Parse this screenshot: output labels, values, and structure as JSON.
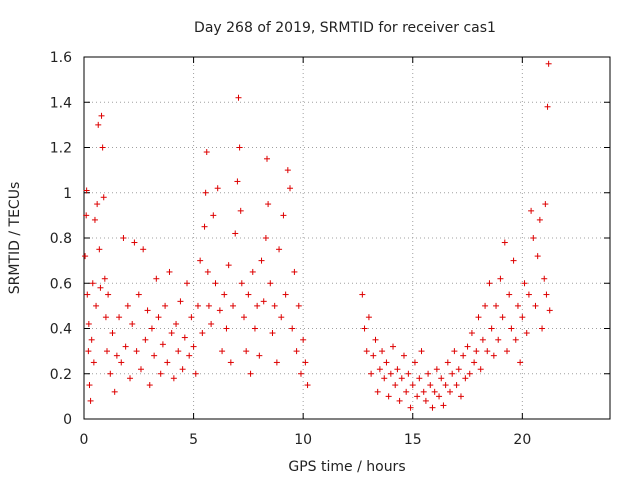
{
  "chart_data": {
    "type": "scatter",
    "title": "Day 268 of 2019, SRMTID for receiver cas1",
    "xlabel": "GPS time / hours",
    "ylabel": "SRMTID / TECUs",
    "xlim": [
      0,
      24
    ],
    "ylim": [
      0,
      1.6
    ],
    "xticks": [
      0,
      5,
      10,
      15,
      20
    ],
    "xtick_labels": [
      "0",
      "5",
      "10",
      "15",
      "20"
    ],
    "yticks": [
      0,
      0.2,
      0.4,
      0.6,
      0.8,
      1,
      1.2,
      1.4,
      1.6
    ],
    "ytick_labels": [
      "0",
      "0.2",
      "0.4",
      "0.6",
      "0.8",
      "1",
      "1.2",
      "1.4",
      "1.6"
    ],
    "grid": true,
    "marker": "+",
    "series": [
      {
        "name": "SRMTID",
        "color": "#dd0000",
        "points": [
          [
            0.05,
            0.72
          ],
          [
            0.1,
            0.9
          ],
          [
            0.12,
            1.01
          ],
          [
            0.15,
            0.55
          ],
          [
            0.2,
            0.3
          ],
          [
            0.22,
            0.42
          ],
          [
            0.25,
            0.15
          ],
          [
            0.3,
            0.08
          ],
          [
            0.35,
            0.35
          ],
          [
            0.4,
            0.6
          ],
          [
            0.45,
            0.25
          ],
          [
            0.5,
            0.88
          ],
          [
            0.55,
            0.5
          ],
          [
            0.6,
            0.95
          ],
          [
            0.65,
            1.3
          ],
          [
            0.7,
            0.75
          ],
          [
            0.75,
            0.58
          ],
          [
            0.8,
            1.34
          ],
          [
            0.85,
            1.2
          ],
          [
            0.9,
            0.98
          ],
          [
            0.95,
            0.62
          ],
          [
            1.0,
            0.45
          ],
          [
            1.05,
            0.3
          ],
          [
            1.1,
            0.55
          ],
          [
            1.2,
            0.2
          ],
          [
            1.3,
            0.38
          ],
          [
            1.4,
            0.12
          ],
          [
            1.5,
            0.28
          ],
          [
            1.6,
            0.45
          ],
          [
            1.7,
            0.25
          ],
          [
            1.8,
            0.8
          ],
          [
            1.9,
            0.32
          ],
          [
            2.0,
            0.5
          ],
          [
            2.1,
            0.18
          ],
          [
            2.2,
            0.42
          ],
          [
            2.3,
            0.78
          ],
          [
            2.4,
            0.3
          ],
          [
            2.5,
            0.55
          ],
          [
            2.6,
            0.22
          ],
          [
            2.7,
            0.75
          ],
          [
            2.8,
            0.35
          ],
          [
            2.9,
            0.48
          ],
          [
            3.0,
            0.15
          ],
          [
            3.1,
            0.4
          ],
          [
            3.2,
            0.28
          ],
          [
            3.3,
            0.62
          ],
          [
            3.4,
            0.45
          ],
          [
            3.5,
            0.2
          ],
          [
            3.6,
            0.33
          ],
          [
            3.7,
            0.5
          ],
          [
            3.8,
            0.25
          ],
          [
            3.9,
            0.65
          ],
          [
            4.0,
            0.38
          ],
          [
            4.1,
            0.18
          ],
          [
            4.2,
            0.42
          ],
          [
            4.3,
            0.3
          ],
          [
            4.4,
            0.52
          ],
          [
            4.5,
            0.22
          ],
          [
            4.6,
            0.36
          ],
          [
            4.7,
            0.6
          ],
          [
            4.8,
            0.28
          ],
          [
            4.9,
            0.45
          ],
          [
            5.0,
            0.32
          ],
          [
            5.1,
            0.2
          ],
          [
            5.2,
            0.5
          ],
          [
            5.3,
            0.7
          ],
          [
            5.4,
            0.38
          ],
          [
            5.5,
            0.85
          ],
          [
            5.55,
            1.0
          ],
          [
            5.6,
            1.18
          ],
          [
            5.65,
            0.65
          ],
          [
            5.7,
            0.5
          ],
          [
            5.8,
            0.42
          ],
          [
            5.9,
            0.9
          ],
          [
            6.0,
            0.6
          ],
          [
            6.1,
            1.02
          ],
          [
            6.2,
            0.48
          ],
          [
            6.3,
            0.3
          ],
          [
            6.4,
            0.55
          ],
          [
            6.5,
            0.4
          ],
          [
            6.6,
            0.68
          ],
          [
            6.7,
            0.25
          ],
          [
            6.8,
            0.5
          ],
          [
            6.9,
            0.82
          ],
          [
            7.0,
            1.05
          ],
          [
            7.05,
            1.42
          ],
          [
            7.1,
            1.2
          ],
          [
            7.15,
            0.92
          ],
          [
            7.2,
            0.6
          ],
          [
            7.3,
            0.45
          ],
          [
            7.4,
            0.3
          ],
          [
            7.5,
            0.55
          ],
          [
            7.6,
            0.2
          ],
          [
            7.7,
            0.65
          ],
          [
            7.8,
            0.4
          ],
          [
            7.9,
            0.5
          ],
          [
            8.0,
            0.28
          ],
          [
            8.1,
            0.7
          ],
          [
            8.2,
            0.52
          ],
          [
            8.3,
            0.8
          ],
          [
            8.35,
            1.15
          ],
          [
            8.4,
            0.95
          ],
          [
            8.5,
            0.6
          ],
          [
            8.6,
            0.38
          ],
          [
            8.7,
            0.5
          ],
          [
            8.8,
            0.25
          ],
          [
            8.9,
            0.75
          ],
          [
            9.0,
            0.45
          ],
          [
            9.1,
            0.9
          ],
          [
            9.2,
            0.55
          ],
          [
            9.3,
            1.1
          ],
          [
            9.4,
            1.02
          ],
          [
            9.5,
            0.4
          ],
          [
            9.6,
            0.65
          ],
          [
            9.7,
            0.3
          ],
          [
            9.8,
            0.5
          ],
          [
            9.9,
            0.2
          ],
          [
            10.0,
            0.35
          ],
          [
            10.1,
            0.25
          ],
          [
            10.2,
            0.15
          ],
          [
            12.7,
            0.55
          ],
          [
            12.8,
            0.4
          ],
          [
            12.9,
            0.3
          ],
          [
            13.0,
            0.45
          ],
          [
            13.1,
            0.2
          ],
          [
            13.2,
            0.28
          ],
          [
            13.3,
            0.35
          ],
          [
            13.4,
            0.12
          ],
          [
            13.5,
            0.22
          ],
          [
            13.6,
            0.3
          ],
          [
            13.7,
            0.18
          ],
          [
            13.8,
            0.25
          ],
          [
            13.9,
            0.1
          ],
          [
            14.0,
            0.2
          ],
          [
            14.1,
            0.32
          ],
          [
            14.2,
            0.15
          ],
          [
            14.3,
            0.22
          ],
          [
            14.4,
            0.08
          ],
          [
            14.5,
            0.18
          ],
          [
            14.6,
            0.28
          ],
          [
            14.7,
            0.12
          ],
          [
            14.8,
            0.2
          ],
          [
            14.9,
            0.05
          ],
          [
            15.0,
            0.15
          ],
          [
            15.1,
            0.25
          ],
          [
            15.2,
            0.1
          ],
          [
            15.3,
            0.18
          ],
          [
            15.4,
            0.3
          ],
          [
            15.5,
            0.12
          ],
          [
            15.6,
            0.08
          ],
          [
            15.7,
            0.2
          ],
          [
            15.8,
            0.15
          ],
          [
            15.9,
            0.05
          ],
          [
            16.0,
            0.12
          ],
          [
            16.1,
            0.22
          ],
          [
            16.2,
            0.1
          ],
          [
            16.3,
            0.18
          ],
          [
            16.4,
            0.06
          ],
          [
            16.5,
            0.15
          ],
          [
            16.6,
            0.25
          ],
          [
            16.7,
            0.12
          ],
          [
            16.8,
            0.2
          ],
          [
            16.9,
            0.3
          ],
          [
            17.0,
            0.15
          ],
          [
            17.1,
            0.22
          ],
          [
            17.2,
            0.1
          ],
          [
            17.3,
            0.28
          ],
          [
            17.4,
            0.18
          ],
          [
            17.5,
            0.32
          ],
          [
            17.6,
            0.2
          ],
          [
            17.7,
            0.38
          ],
          [
            17.8,
            0.25
          ],
          [
            17.9,
            0.3
          ],
          [
            18.0,
            0.45
          ],
          [
            18.1,
            0.22
          ],
          [
            18.2,
            0.35
          ],
          [
            18.3,
            0.5
          ],
          [
            18.4,
            0.3
          ],
          [
            18.5,
            0.6
          ],
          [
            18.6,
            0.4
          ],
          [
            18.7,
            0.28
          ],
          [
            18.8,
            0.5
          ],
          [
            18.9,
            0.35
          ],
          [
            19.0,
            0.62
          ],
          [
            19.1,
            0.45
          ],
          [
            19.2,
            0.78
          ],
          [
            19.3,
            0.3
          ],
          [
            19.4,
            0.55
          ],
          [
            19.5,
            0.4
          ],
          [
            19.6,
            0.7
          ],
          [
            19.7,
            0.35
          ],
          [
            19.8,
            0.5
          ],
          [
            19.9,
            0.25
          ],
          [
            20.0,
            0.45
          ],
          [
            20.1,
            0.6
          ],
          [
            20.2,
            0.38
          ],
          [
            20.3,
            0.55
          ],
          [
            20.4,
            0.92
          ],
          [
            20.5,
            0.8
          ],
          [
            20.6,
            0.5
          ],
          [
            20.7,
            0.72
          ],
          [
            20.8,
            0.88
          ],
          [
            20.9,
            0.4
          ],
          [
            21.0,
            0.62
          ],
          [
            21.05,
            0.95
          ],
          [
            21.1,
            0.55
          ],
          [
            21.15,
            1.38
          ],
          [
            21.2,
            1.57
          ],
          [
            21.25,
            0.48
          ]
        ]
      }
    ]
  }
}
